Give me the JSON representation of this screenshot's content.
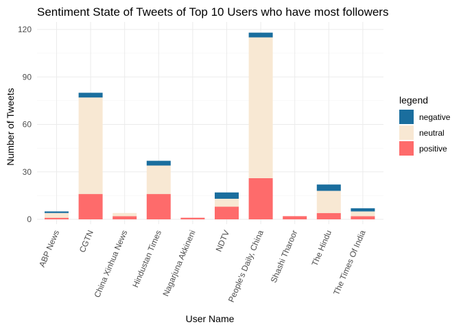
{
  "chart_data": {
    "type": "bar",
    "stacked": true,
    "title": "Sentiment State of Tweets of Top 10 Users who have most followers",
    "xlabel": "User Name",
    "ylabel": "Number of Tweets",
    "ylim": [
      0,
      123
    ],
    "yticks": [
      0,
      30,
      60,
      90,
      120
    ],
    "grid": true,
    "legend_position": "right",
    "legend_title": "legend",
    "categories": [
      "ABP News",
      "CGTN",
      "China Xinhua News",
      "Hindustan Times",
      "Nagarjuna Akkineni",
      "NDTV",
      "People's Daily, China",
      "Shashi Tharoor",
      "The Hindu",
      "The Times Of India"
    ],
    "series": [
      {
        "name": "negative",
        "color": "#1a6e9e",
        "values": [
          1,
          3,
          0,
          3,
          0,
          4,
          3,
          0,
          4,
          2
        ]
      },
      {
        "name": "neutral",
        "color": "#f8e8d3",
        "values": [
          3,
          61,
          2,
          18,
          0,
          5,
          89,
          0,
          14,
          3
        ]
      },
      {
        "name": "positive",
        "color": "#fe6b6b",
        "values": [
          1,
          16,
          2,
          16,
          1,
          8,
          26,
          2,
          4,
          2
        ]
      }
    ]
  }
}
